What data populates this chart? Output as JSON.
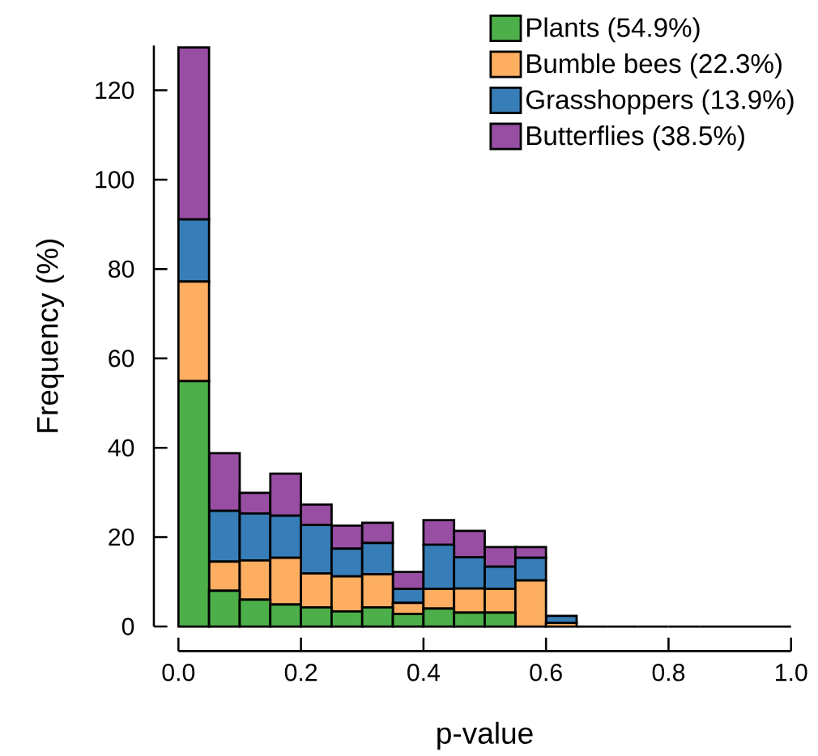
{
  "chart_data": {
    "type": "bar",
    "stacked": true,
    "xlabel": "p-value",
    "ylabel": "Frequency (%)",
    "legend": "top right",
    "x": [
      0.025,
      0.075,
      0.125,
      0.175,
      0.225,
      0.275,
      0.325,
      0.375,
      0.425,
      0.475,
      0.525,
      0.575,
      0.625,
      0.675,
      0.725,
      0.775,
      0.825,
      0.875,
      0.925,
      0.975
    ],
    "series": [
      {
        "name": "Plants (54.9%)",
        "color": "#4daf4a",
        "values": [
          54.9,
          8.0,
          6.0,
          4.9,
          4.3,
          3.4,
          4.3,
          2.8,
          4.0,
          3.1,
          3.1,
          0,
          0,
          0,
          0,
          0,
          0,
          0,
          0,
          0
        ]
      },
      {
        "name": "Bumble bees (22.3%)",
        "color": "#fdae61",
        "values": [
          22.3,
          6.5,
          8.8,
          10.5,
          7.6,
          7.8,
          7.4,
          2.5,
          4.4,
          5.4,
          5.3,
          10.3,
          0.8,
          0,
          0,
          0,
          0,
          0,
          0,
          0
        ]
      },
      {
        "name": "Grasshoppers (13.9%)",
        "color": "#377eb8",
        "values": [
          13.9,
          11.4,
          10.5,
          9.4,
          10.8,
          6.2,
          7.0,
          3.1,
          9.9,
          7.0,
          5.0,
          5.1,
          1.6,
          0,
          0,
          0,
          0,
          0,
          0,
          0
        ]
      },
      {
        "name": "Butterflies (38.5%)",
        "color": "#984ea3",
        "values": [
          38.5,
          12.9,
          4.6,
          9.4,
          4.6,
          5.2,
          4.5,
          3.8,
          5.5,
          5.9,
          4.4,
          2.4,
          0,
          0,
          0,
          0,
          0,
          0,
          0,
          0
        ]
      }
    ],
    "xlim": [
      0,
      1
    ],
    "ylim": [
      0,
      130
    ],
    "xticks": [
      {
        "value": 0,
        "label": "0.0"
      },
      0.2,
      0.4,
      0.6,
      0.8,
      {
        "value": 1,
        "label": "1.0"
      }
    ],
    "yticks": [
      0,
      20,
      40,
      60,
      80,
      100,
      120
    ]
  }
}
